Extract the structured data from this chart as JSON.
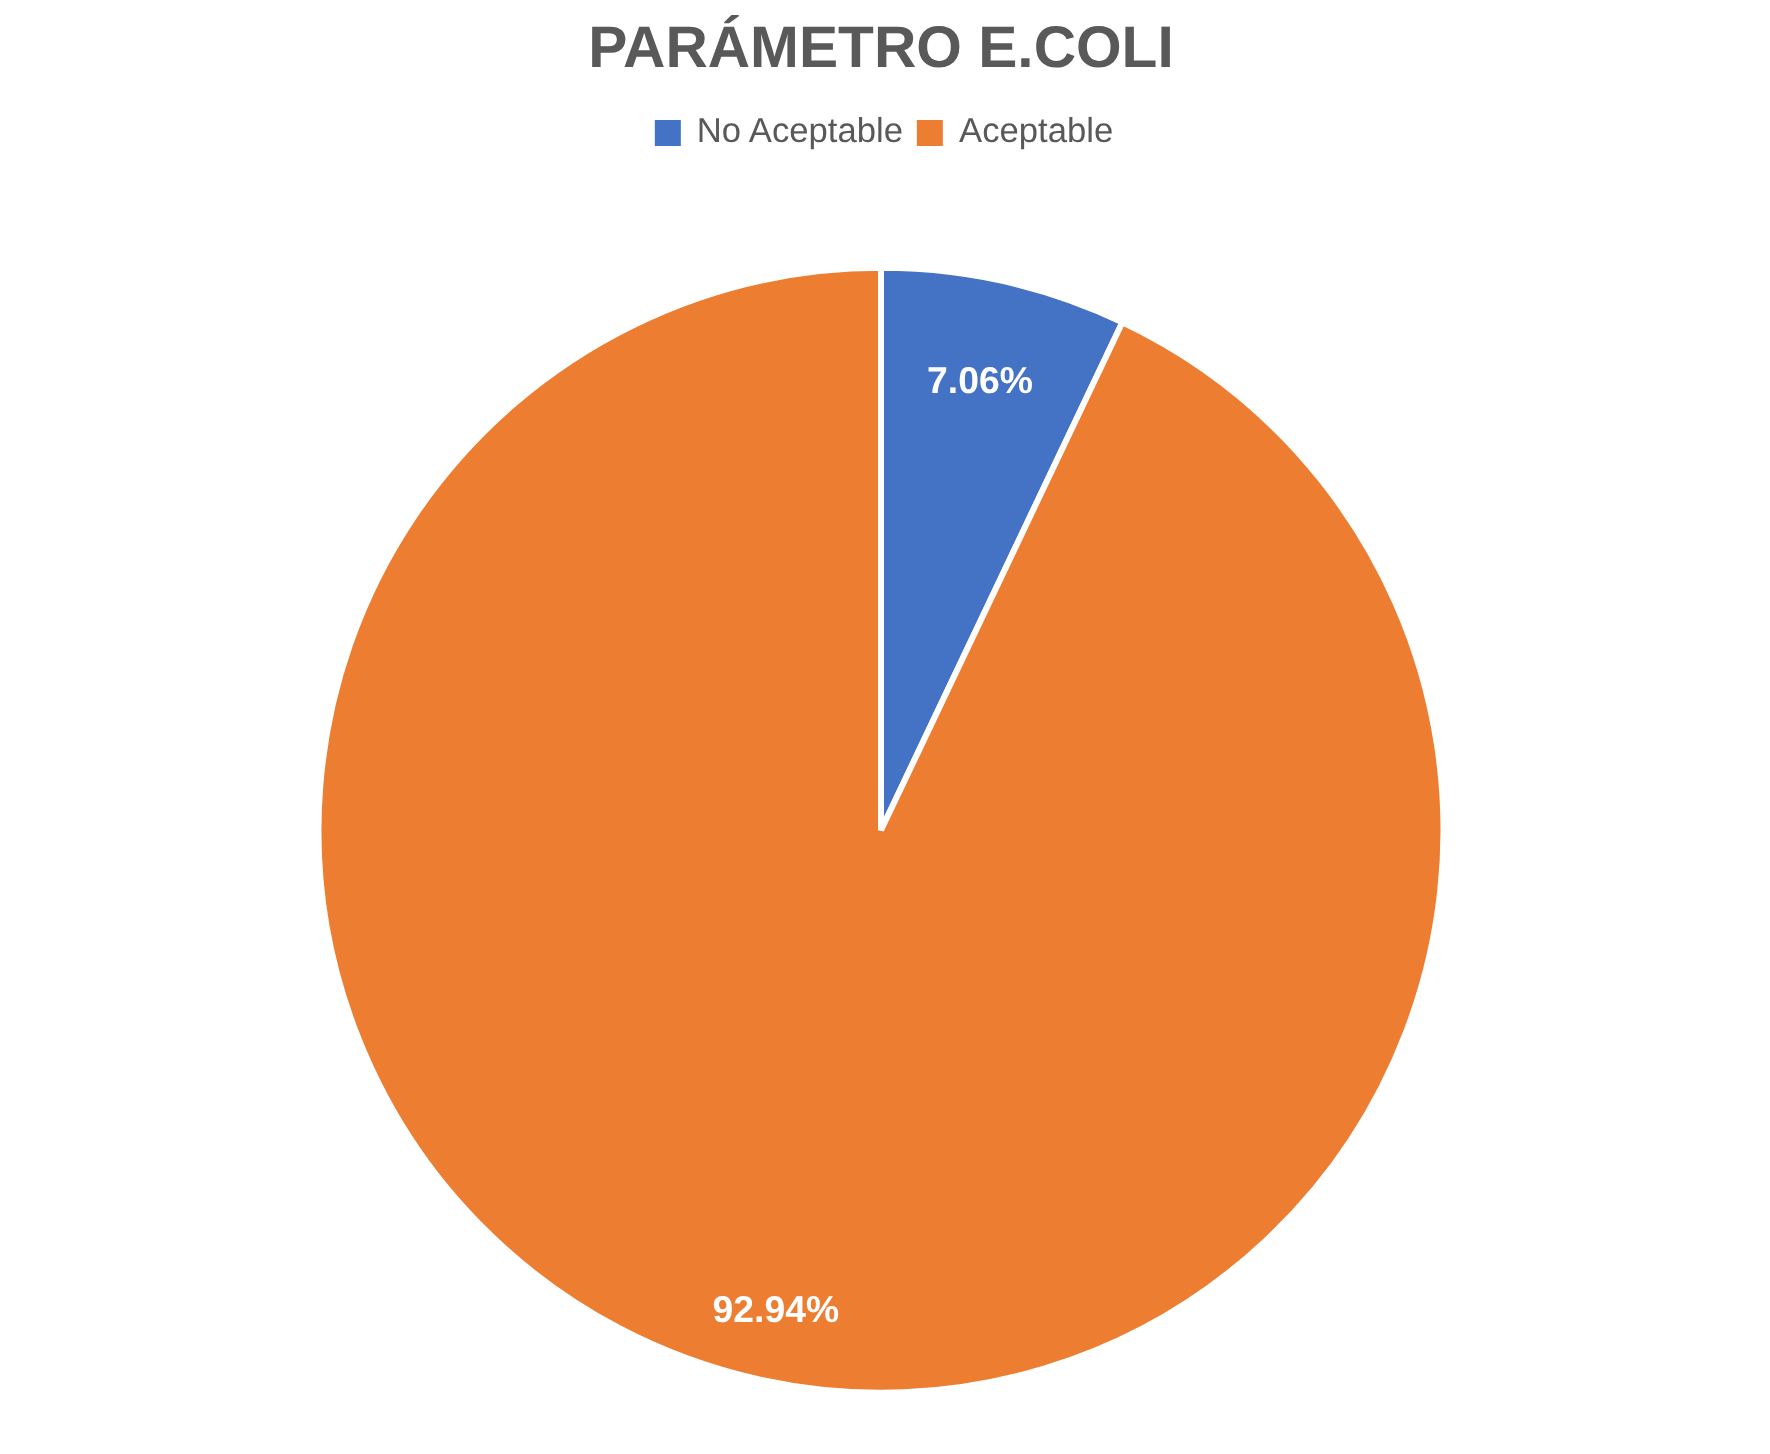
{
  "chart_data": {
    "type": "pie",
    "title": "PARÁMETRO E.COLI",
    "categories": [
      "No Aceptable",
      "Aceptable"
    ],
    "values": [
      7.06,
      92.94
    ],
    "colors": [
      "#4472c4",
      "#ed7d31"
    ],
    "value_labels": [
      "7.06%",
      "92.94%"
    ],
    "legend": "top"
  }
}
